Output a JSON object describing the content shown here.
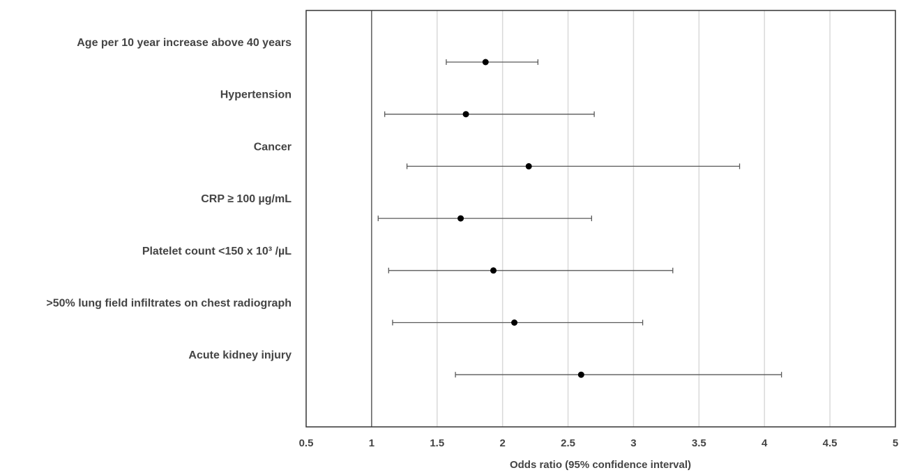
{
  "chart_data": {
    "type": "forest",
    "title": "",
    "xlabel": "Odds ratio (95% confidence interval)",
    "ylabel": "",
    "xlim": [
      0.5,
      5
    ],
    "xticks": [
      0.5,
      1,
      1.5,
      2,
      2.5,
      3,
      3.5,
      4,
      4.5,
      5
    ],
    "xtick_labels": [
      "0.5",
      "1",
      "1.5",
      "2",
      "2.5",
      "3",
      "3.5",
      "4",
      "4.5",
      "5"
    ],
    "reference_line": 1,
    "grid": "vertical",
    "series": [
      {
        "points": [
          {
            "label": "Age per 10 year increase above 40 years",
            "or": 1.87,
            "lower": 1.57,
            "upper": 2.27
          },
          {
            "label": "Hypertension",
            "or": 1.72,
            "lower": 1.1,
            "upper": 2.7
          },
          {
            "label": "Cancer",
            "or": 2.2,
            "lower": 1.27,
            "upper": 3.81
          },
          {
            "label": "CRP ≥ 100 µg/mL",
            "or": 1.68,
            "lower": 1.05,
            "upper": 2.68
          },
          {
            "label": "Platelet count <150 x 10³ /µL",
            "or": 1.93,
            "lower": 1.13,
            "upper": 3.3
          },
          {
            "label": ">50% lung field infiltrates on chest radiograph",
            "or": 2.09,
            "lower": 1.16,
            "upper": 3.07
          },
          {
            "label": "Acute kidney injury",
            "or": 2.6,
            "lower": 1.64,
            "upper": 4.13
          }
        ]
      }
    ],
    "colors": {
      "axis": "#333333",
      "grid": "#d9d9d9",
      "marker": "#000000",
      "whisker": "#595959",
      "text": "#444444"
    }
  }
}
